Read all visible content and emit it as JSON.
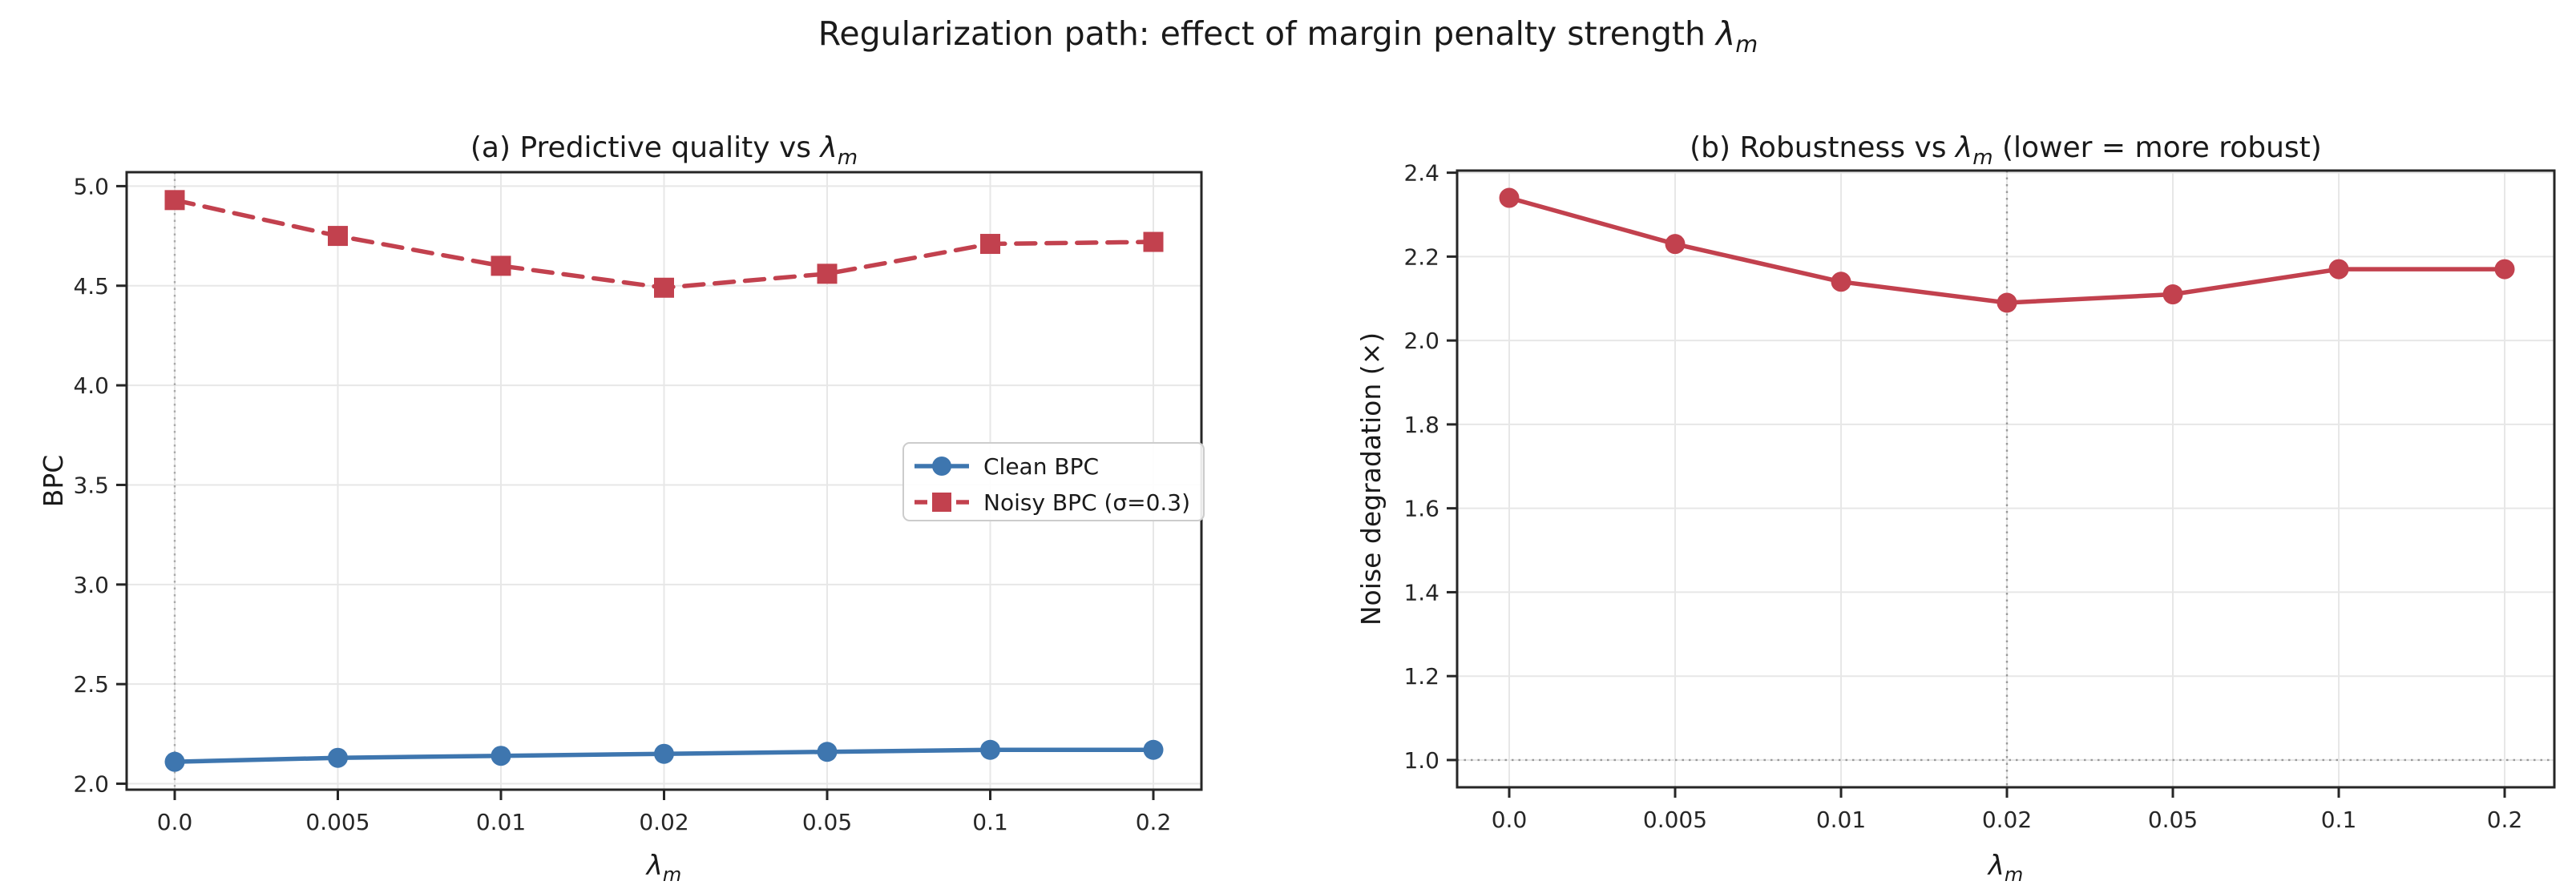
{
  "figure": {
    "title_prefix": "Regularization path: effect of margin penalty strength ",
    "title_lambda": "λ",
    "title_lambda_sub": "m"
  },
  "chart_data": [
    {
      "type": "line",
      "panel": "a",
      "title_parts": [
        {
          "text": "(a) Predictive quality vs "
        },
        {
          "text": "λ",
          "italic": true
        },
        {
          "text": "m",
          "italic": true,
          "sub": true
        }
      ],
      "xlabel_parts": [
        {
          "text": "λ",
          "italic": true
        },
        {
          "text": "m",
          "italic": true,
          "sub": true
        }
      ],
      "ylabel": "BPC",
      "categories": [
        "0.0",
        "0.005",
        "0.01",
        "0.02",
        "0.05",
        "0.1",
        "0.2"
      ],
      "x_values": [
        0,
        0.005,
        0.01,
        0.02,
        0.05,
        0.1,
        0.2
      ],
      "yticks": [
        "2.0",
        "2.5",
        "3.0",
        "3.5",
        "4.0",
        "4.5",
        "5.0"
      ],
      "ylim": [
        1.97,
        5.07
      ],
      "grid": true,
      "legend": {
        "visible": true,
        "position": "center right"
      },
      "vline": {
        "at_category": "0.0",
        "style": "dotted",
        "color": "#aaaaaa"
      },
      "series": [
        {
          "name": "Clean BPC",
          "color": "#3E76AF",
          "marker": "circle",
          "linestyle": "solid",
          "values": [
            2.11,
            2.13,
            2.14,
            2.15,
            2.16,
            2.17,
            2.17
          ]
        },
        {
          "name": "Noisy BPC (σ=0.3)",
          "color": "#C2414E",
          "marker": "square",
          "linestyle": "dashed",
          "values": [
            4.93,
            4.75,
            4.6,
            4.49,
            4.56,
            4.71,
            4.72
          ]
        }
      ]
    },
    {
      "type": "line",
      "panel": "b",
      "title_parts": [
        {
          "text": "(b) Robustness vs "
        },
        {
          "text": "λ",
          "italic": true
        },
        {
          "text": "m",
          "italic": true,
          "sub": true
        },
        {
          "text": " (lower = more robust)"
        }
      ],
      "xlabel_parts": [
        {
          "text": "λ",
          "italic": true
        },
        {
          "text": "m",
          "italic": true,
          "sub": true
        }
      ],
      "ylabel": "Noise degradation (×)",
      "categories": [
        "0.0",
        "0.005",
        "0.01",
        "0.02",
        "0.05",
        "0.1",
        "0.2"
      ],
      "x_values": [
        0,
        0.005,
        0.01,
        0.02,
        0.05,
        0.1,
        0.2
      ],
      "yticks": [
        "1.0",
        "1.2",
        "1.4",
        "1.6",
        "1.8",
        "2.0",
        "2.2",
        "2.4"
      ],
      "ylim": [
        0.935,
        2.405
      ],
      "grid": true,
      "legend": {
        "visible": false
      },
      "vline": {
        "at_category": "0.02",
        "style": "dotted",
        "color": "#999999"
      },
      "hline": {
        "at": 1.0,
        "style": "dotted",
        "color": "#999999"
      },
      "series": [
        {
          "name": "Noise degradation (×)",
          "color": "#C2414E",
          "marker": "circle",
          "linestyle": "solid",
          "values": [
            2.34,
            2.23,
            2.14,
            2.09,
            2.11,
            2.17,
            2.17
          ]
        }
      ]
    }
  ]
}
